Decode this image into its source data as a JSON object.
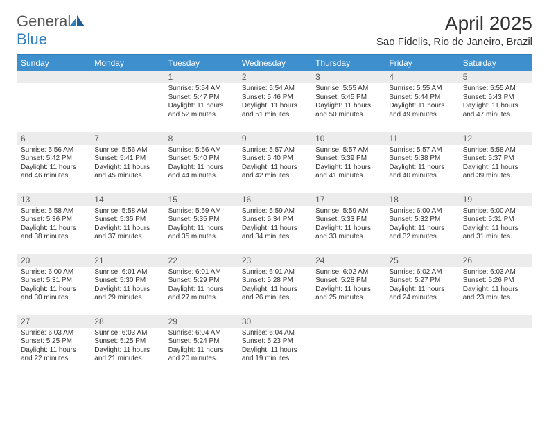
{
  "logo": {
    "general": "General",
    "blue": "Blue"
  },
  "title": "April 2025",
  "location": "Sao Fidelis, Rio de Janeiro, Brazil",
  "colors": {
    "header_bg": "#3d8fce",
    "border": "#2f7ec0",
    "daynum_bg": "#ececec",
    "text": "#333333"
  },
  "weekdays": [
    "Sunday",
    "Monday",
    "Tuesday",
    "Wednesday",
    "Thursday",
    "Friday",
    "Saturday"
  ],
  "weeks": [
    [
      {
        "n": "",
        "sr": "",
        "ss": "",
        "dl": ""
      },
      {
        "n": "",
        "sr": "",
        "ss": "",
        "dl": ""
      },
      {
        "n": "1",
        "sr": "5:54 AM",
        "ss": "5:47 PM",
        "dl": "11 hours and 52 minutes."
      },
      {
        "n": "2",
        "sr": "5:54 AM",
        "ss": "5:46 PM",
        "dl": "11 hours and 51 minutes."
      },
      {
        "n": "3",
        "sr": "5:55 AM",
        "ss": "5:45 PM",
        "dl": "11 hours and 50 minutes."
      },
      {
        "n": "4",
        "sr": "5:55 AM",
        "ss": "5:44 PM",
        "dl": "11 hours and 49 minutes."
      },
      {
        "n": "5",
        "sr": "5:55 AM",
        "ss": "5:43 PM",
        "dl": "11 hours and 47 minutes."
      }
    ],
    [
      {
        "n": "6",
        "sr": "5:56 AM",
        "ss": "5:42 PM",
        "dl": "11 hours and 46 minutes."
      },
      {
        "n": "7",
        "sr": "5:56 AM",
        "ss": "5:41 PM",
        "dl": "11 hours and 45 minutes."
      },
      {
        "n": "8",
        "sr": "5:56 AM",
        "ss": "5:40 PM",
        "dl": "11 hours and 44 minutes."
      },
      {
        "n": "9",
        "sr": "5:57 AM",
        "ss": "5:40 PM",
        "dl": "11 hours and 42 minutes."
      },
      {
        "n": "10",
        "sr": "5:57 AM",
        "ss": "5:39 PM",
        "dl": "11 hours and 41 minutes."
      },
      {
        "n": "11",
        "sr": "5:57 AM",
        "ss": "5:38 PM",
        "dl": "11 hours and 40 minutes."
      },
      {
        "n": "12",
        "sr": "5:58 AM",
        "ss": "5:37 PM",
        "dl": "11 hours and 39 minutes."
      }
    ],
    [
      {
        "n": "13",
        "sr": "5:58 AM",
        "ss": "5:36 PM",
        "dl": "11 hours and 38 minutes."
      },
      {
        "n": "14",
        "sr": "5:58 AM",
        "ss": "5:35 PM",
        "dl": "11 hours and 37 minutes."
      },
      {
        "n": "15",
        "sr": "5:59 AM",
        "ss": "5:35 PM",
        "dl": "11 hours and 35 minutes."
      },
      {
        "n": "16",
        "sr": "5:59 AM",
        "ss": "5:34 PM",
        "dl": "11 hours and 34 minutes."
      },
      {
        "n": "17",
        "sr": "5:59 AM",
        "ss": "5:33 PM",
        "dl": "11 hours and 33 minutes."
      },
      {
        "n": "18",
        "sr": "6:00 AM",
        "ss": "5:32 PM",
        "dl": "11 hours and 32 minutes."
      },
      {
        "n": "19",
        "sr": "6:00 AM",
        "ss": "5:31 PM",
        "dl": "11 hours and 31 minutes."
      }
    ],
    [
      {
        "n": "20",
        "sr": "6:00 AM",
        "ss": "5:31 PM",
        "dl": "11 hours and 30 minutes."
      },
      {
        "n": "21",
        "sr": "6:01 AM",
        "ss": "5:30 PM",
        "dl": "11 hours and 29 minutes."
      },
      {
        "n": "22",
        "sr": "6:01 AM",
        "ss": "5:29 PM",
        "dl": "11 hours and 27 minutes."
      },
      {
        "n": "23",
        "sr": "6:01 AM",
        "ss": "5:28 PM",
        "dl": "11 hours and 26 minutes."
      },
      {
        "n": "24",
        "sr": "6:02 AM",
        "ss": "5:28 PM",
        "dl": "11 hours and 25 minutes."
      },
      {
        "n": "25",
        "sr": "6:02 AM",
        "ss": "5:27 PM",
        "dl": "11 hours and 24 minutes."
      },
      {
        "n": "26",
        "sr": "6:03 AM",
        "ss": "5:26 PM",
        "dl": "11 hours and 23 minutes."
      }
    ],
    [
      {
        "n": "27",
        "sr": "6:03 AM",
        "ss": "5:25 PM",
        "dl": "11 hours and 22 minutes."
      },
      {
        "n": "28",
        "sr": "6:03 AM",
        "ss": "5:25 PM",
        "dl": "11 hours and 21 minutes."
      },
      {
        "n": "29",
        "sr": "6:04 AM",
        "ss": "5:24 PM",
        "dl": "11 hours and 20 minutes."
      },
      {
        "n": "30",
        "sr": "6:04 AM",
        "ss": "5:23 PM",
        "dl": "11 hours and 19 minutes."
      },
      {
        "n": "",
        "sr": "",
        "ss": "",
        "dl": ""
      },
      {
        "n": "",
        "sr": "",
        "ss": "",
        "dl": ""
      },
      {
        "n": "",
        "sr": "",
        "ss": "",
        "dl": ""
      }
    ]
  ],
  "labels": {
    "sunrise": "Sunrise:",
    "sunset": "Sunset:",
    "daylight": "Daylight:"
  }
}
